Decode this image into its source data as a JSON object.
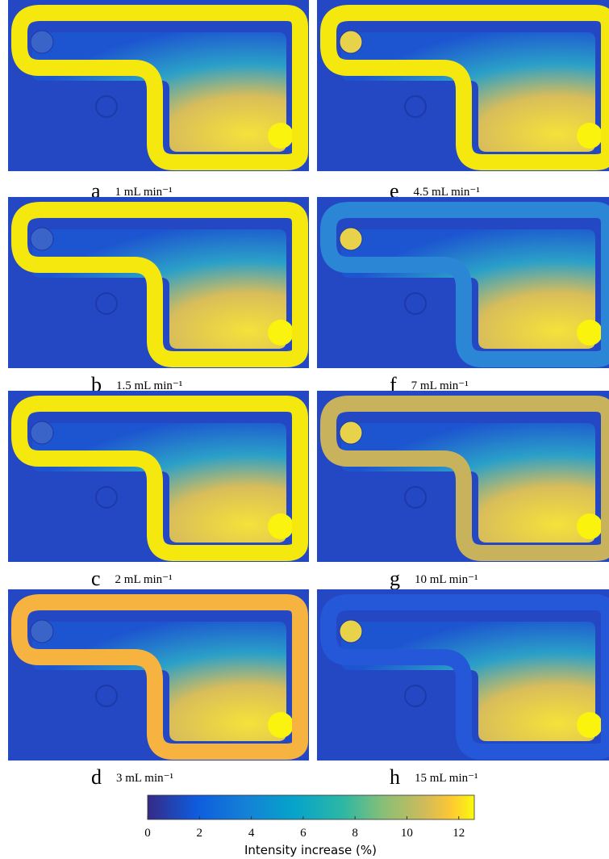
{
  "panels": [
    {
      "letter": "a",
      "label": "1 mL min⁻¹",
      "channel_color": "#f4e80f"
    },
    {
      "letter": "b",
      "label": "1.5 mL min⁻¹",
      "channel_color": "#f4e80f"
    },
    {
      "letter": "c",
      "label": "2 mL min⁻¹",
      "channel_color": "#f4e80f"
    },
    {
      "letter": "d",
      "label": "3 mL min⁻¹",
      "channel_color": "#f6b33f"
    },
    {
      "letter": "e",
      "label": "4.5 mL min⁻¹",
      "channel_color": "#f4e80f"
    },
    {
      "letter": "f",
      "label": "7 mL min⁻¹",
      "channel_color": "#2b86d6"
    },
    {
      "letter": "g",
      "label": "10 mL min⁻¹",
      "channel_color": "#c9b25c"
    },
    {
      "letter": "h",
      "label": "15 mL min⁻¹",
      "channel_color": "#2458d9"
    }
  ],
  "colorbar": {
    "label": "Intensity increase (%)",
    "lim": [
      0,
      12.6
    ],
    "ticks": [
      0,
      2,
      4,
      6,
      8,
      10,
      12
    ]
  }
}
